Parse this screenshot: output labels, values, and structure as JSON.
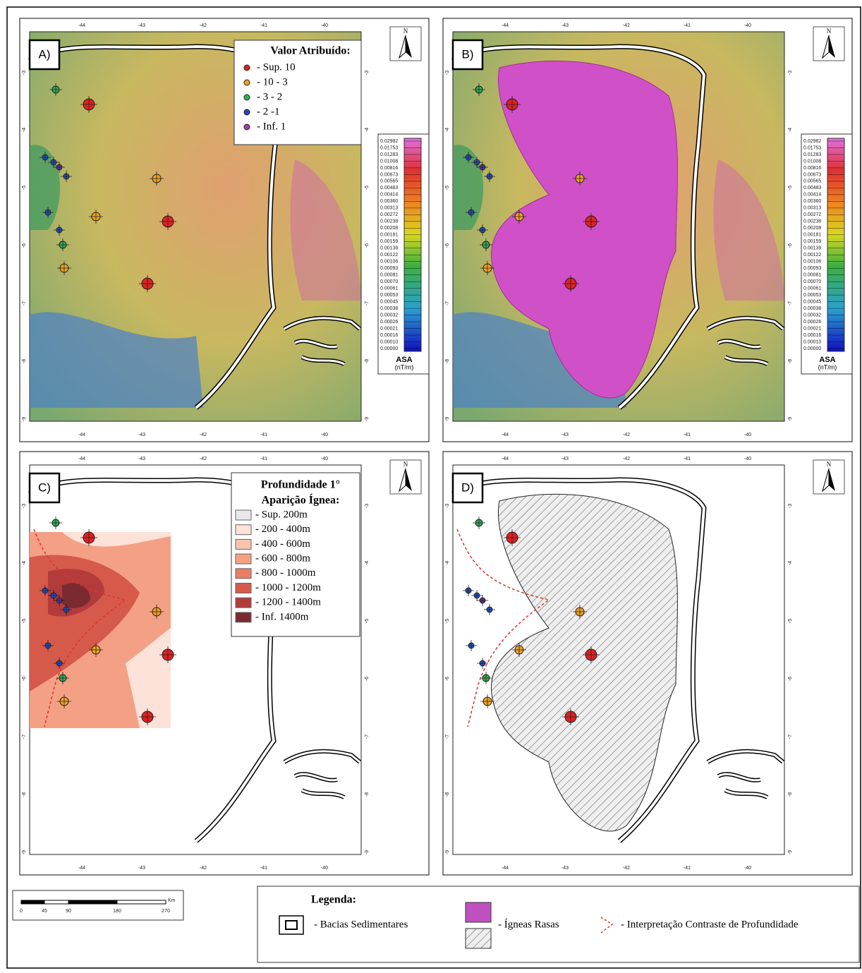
{
  "panels": [
    {
      "label": "A)"
    },
    {
      "label": "B)"
    },
    {
      "label": "C)"
    },
    {
      "label": "D)"
    }
  ],
  "longitude_labels": [
    "-44",
    "-43",
    "-42",
    "-41",
    "-40"
  ],
  "latitude_labels": [
    "-3",
    "-4",
    "-5",
    "-6",
    "-7",
    "-8",
    "-9"
  ],
  "north": "N",
  "assigned_value_legend": {
    "title": "Valor Atribuído:",
    "items": [
      "- Sup. 10",
      "- 10 - 3",
      "- 3 - 2",
      "- 2 -1",
      "- Inf. 1"
    ]
  },
  "colorbar": {
    "labels": [
      "0.02982",
      "0.01753",
      "0.01283",
      "0.01008",
      "0.00816",
      "0.00673",
      "0.00565",
      "0.00483",
      "0.00414",
      "0.00360",
      "0.00313",
      "0.00272",
      "0.00238",
      "0.00208",
      "0.00181",
      "0.00159",
      "0.00139",
      "0.00122",
      "0.00106",
      "0.00093",
      "0.00081",
      "0.00070",
      "0.00061",
      "0.00053",
      "0.00045",
      "0.00038",
      "0.00032",
      "0.00026",
      "0.00021",
      "0.00016",
      "0.00010",
      "0.00000"
    ],
    "title": "ASA",
    "unit": "(nT/m)"
  },
  "depth_legend": {
    "title_lines": [
      "Profundidade 1°",
      "Aparição Ígnea:"
    ],
    "items": [
      "- Sup. 200m",
      "- 200 - 400m",
      "- 400 - 600m",
      "- 600 - 800m",
      "- 800 - 1000m",
      "- 1000 - 1200m",
      "- 1200 - 1400m",
      "- Inf. 1400m"
    ]
  },
  "scale_bar": {
    "unit": "Km",
    "labels": [
      "0",
      "45",
      "90",
      "180",
      "270"
    ]
  },
  "legend": {
    "title": "Legenda:",
    "items": [
      "- Bacias Sedimentares",
      "- Ígneas Rasas",
      "- Interpretação Contraste de Profundidade"
    ]
  }
}
